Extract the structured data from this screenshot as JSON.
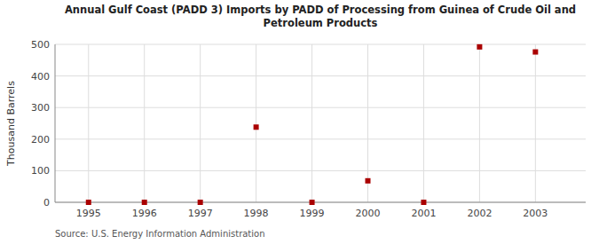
{
  "chart_data": {
    "type": "scatter",
    "title": "Annual Gulf Coast (PADD 3) Imports by PADD of Processing from Guinea of Crude Oil and\nPetroleum Products",
    "ylabel": "Thousand Barrels",
    "annotations": [
      "Source: U.S. Energy Information Administration"
    ],
    "x": [
      1995,
      1996,
      1997,
      1998,
      1999,
      2000,
      2001,
      2002,
      2003
    ],
    "values": [
      0,
      0,
      0,
      238,
      0,
      68,
      0,
      492,
      476
    ],
    "xlim": [
      1994.4,
      2003.9
    ],
    "ylim": [
      0,
      500
    ],
    "xticks": [
      1995,
      1996,
      1997,
      1998,
      1999,
      2000,
      2001,
      2002,
      2003
    ],
    "yticks": [
      0,
      100,
      200,
      300,
      400,
      500
    ],
    "color": "#aa0000",
    "marker": "square",
    "grid": true
  }
}
